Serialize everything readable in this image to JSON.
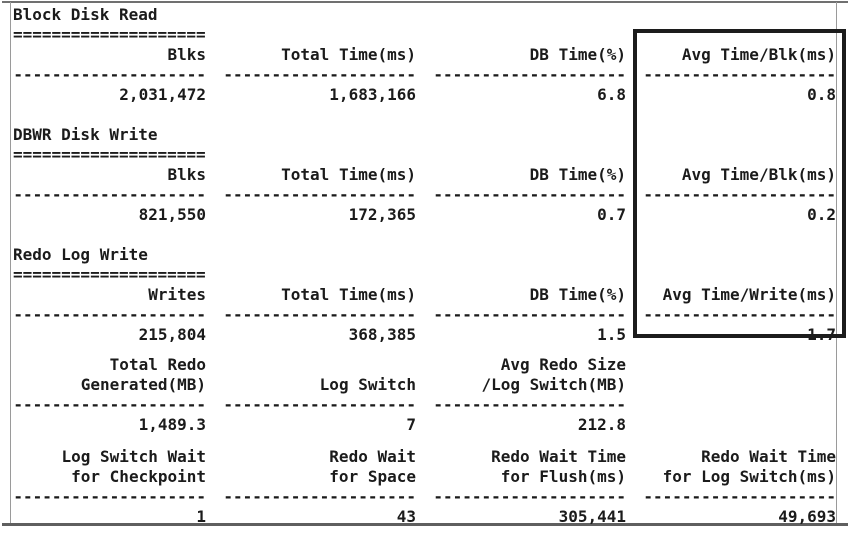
{
  "report": {
    "description": "Database I/O and redo statistics report",
    "highlight_box": {
      "purpose": "emphasizes Avg Time column",
      "border_color": "#1c1c1c"
    },
    "sections": [
      {
        "title": "Block Disk Read",
        "underline": "====================",
        "headers": [
          "Blks",
          "Total Time(ms)",
          "DB Time(%)",
          "Avg Time/Blk(ms)"
        ],
        "separators": [
          "--------------------",
          "--------------------",
          "--------------------",
          "--------------------"
        ],
        "values": [
          "2,031,472",
          "1,683,166",
          "6.8",
          "0.8"
        ]
      },
      {
        "title": "DBWR Disk Write",
        "underline": "====================",
        "headers": [
          "Blks",
          "Total Time(ms)",
          "DB Time(%)",
          "Avg Time/Blk(ms)"
        ],
        "separators": [
          "--------------------",
          "--------------------",
          "--------------------",
          "--------------------"
        ],
        "values": [
          "821,550",
          "172,365",
          "0.7",
          "0.2"
        ]
      },
      {
        "title": "Redo Log Write",
        "underline": "====================",
        "headers": [
          "Writes",
          "Total Time(ms)",
          "DB Time(%)",
          "Avg Time/Write(ms)"
        ],
        "separators": [
          "--------------------",
          "--------------------",
          "--------------------",
          "--------------------"
        ],
        "values": [
          "215,804",
          "368,385",
          "1.5",
          "1.7"
        ]
      },
      {
        "header_line1": [
          "Total Redo",
          "",
          "Avg Redo Size",
          ""
        ],
        "header_line2": [
          "Generated(MB)",
          "Log Switch",
          "/Log Switch(MB)",
          ""
        ],
        "separators": [
          "--------------------",
          "--------------------",
          "--------------------",
          ""
        ],
        "values": [
          "1,489.3",
          "7",
          "212.8",
          ""
        ]
      },
      {
        "header_line1": [
          "Log Switch Wait",
          "Redo Wait",
          "Redo Wait Time",
          "Redo Wait Time"
        ],
        "header_line2": [
          "for Checkpoint",
          "for Space",
          "for Flush(ms)",
          "for Log Switch(ms)"
        ],
        "separators": [
          "--------------------",
          "--------------------",
          "--------------------",
          "--------------------"
        ],
        "values": [
          "1",
          "43",
          "305,441",
          "49,693"
        ]
      }
    ]
  }
}
